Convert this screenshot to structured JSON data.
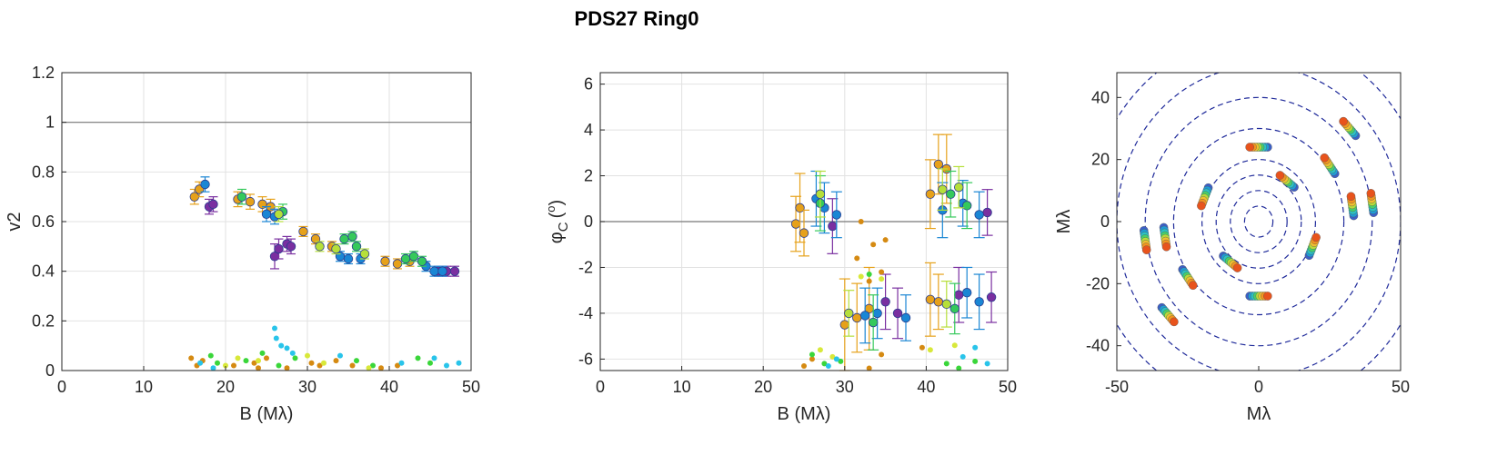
{
  "figure": {
    "title": "PDS27  Ring0"
  },
  "chart_data": [
    {
      "type": "scatter",
      "id": "v2",
      "xlabel": "B (Mλ)",
      "ylabel": "v2",
      "xlim": [
        0,
        50
      ],
      "ylim": [
        0,
        1.2
      ],
      "xticks": [
        0,
        10,
        20,
        30,
        40,
        50
      ],
      "yticks": [
        0,
        0.2,
        0.4,
        0.6,
        0.8,
        1,
        1.2
      ],
      "ytick_labels": [
        "0",
        "0.2",
        "0.4",
        "0.6",
        "0.8",
        "1",
        "1.2"
      ],
      "grid": true,
      "reference_line": 1,
      "series": [
        {
          "color": "#e6a11a",
          "errorbars": true,
          "points": [
            [
              16.2,
              0.7,
              0.03
            ],
            [
              16.8,
              0.73,
              0.03
            ],
            [
              21.5,
              0.69,
              0.03
            ],
            [
              23.0,
              0.68,
              0.03
            ],
            [
              24.5,
              0.67,
              0.03
            ],
            [
              25.5,
              0.66,
              0.03
            ],
            [
              29.5,
              0.56,
              0.02
            ],
            [
              31.0,
              0.53,
              0.02
            ],
            [
              33.0,
              0.5,
              0.02
            ],
            [
              39.5,
              0.44,
              0.02
            ],
            [
              41.0,
              0.43,
              0.02
            ],
            [
              42.5,
              0.44,
              0.02
            ]
          ]
        },
        {
          "color": "#7a2fa0",
          "errorbars": true,
          "points": [
            [
              18.0,
              0.66,
              0.03
            ],
            [
              18.5,
              0.67,
              0.03
            ],
            [
              26.0,
              0.46,
              0.05
            ],
            [
              26.5,
              0.49,
              0.04
            ],
            [
              27.5,
              0.51,
              0.03
            ],
            [
              28.0,
              0.5,
              0.03
            ],
            [
              46.0,
              0.4,
              0.02
            ],
            [
              47.0,
              0.4,
              0.02
            ],
            [
              48.0,
              0.4,
              0.02
            ]
          ]
        },
        {
          "color": "#1a86d4",
          "errorbars": true,
          "points": [
            [
              17.5,
              0.75,
              0.03
            ],
            [
              25.0,
              0.63,
              0.03
            ],
            [
              26.0,
              0.62,
              0.03
            ],
            [
              34.0,
              0.46,
              0.02
            ],
            [
              35.0,
              0.45,
              0.02
            ],
            [
              36.5,
              0.45,
              0.02
            ],
            [
              44.5,
              0.42,
              0.02
            ],
            [
              45.5,
              0.4,
              0.02
            ],
            [
              46.5,
              0.4,
              0.02
            ]
          ]
        },
        {
          "color": "#35c95b",
          "errorbars": true,
          "points": [
            [
              22.0,
              0.7,
              0.03
            ],
            [
              27.0,
              0.64,
              0.03
            ],
            [
              34.5,
              0.53,
              0.02
            ],
            [
              35.5,
              0.54,
              0.02
            ],
            [
              36.0,
              0.5,
              0.02
            ],
            [
              42.0,
              0.45,
              0.02
            ],
            [
              43.0,
              0.46,
              0.02
            ],
            [
              44.0,
              0.44,
              0.02
            ]
          ]
        },
        {
          "color": "#b6df3a",
          "errorbars": true,
          "points": [
            [
              26.5,
              0.63,
              0.03
            ],
            [
              31.5,
              0.5,
              0.02
            ],
            [
              33.5,
              0.49,
              0.02
            ],
            [
              37.0,
              0.47,
              0.02
            ]
          ]
        },
        {
          "color": "#d58a12",
          "errorbars": false,
          "points": [
            [
              15.8,
              0.05
            ],
            [
              16.5,
              0.02
            ],
            [
              17.2,
              0.04
            ],
            [
              21.0,
              0.02
            ],
            [
              23.5,
              0.03
            ],
            [
              24.0,
              0.01
            ],
            [
              25.0,
              0.05
            ],
            [
              27.5,
              0.01
            ],
            [
              30.5,
              0.03
            ],
            [
              31.5,
              0.02
            ],
            [
              33.5,
              0.04
            ],
            [
              35.5,
              0.02
            ],
            [
              39.0,
              0.01
            ],
            [
              41.0,
              0.02
            ]
          ]
        },
        {
          "color": "#3ad63a",
          "errorbars": false,
          "points": [
            [
              18.2,
              0.06
            ],
            [
              19.0,
              0.03
            ],
            [
              22.5,
              0.04
            ],
            [
              24.5,
              0.07
            ],
            [
              26.5,
              0.02
            ],
            [
              28.5,
              0.05
            ],
            [
              36.0,
              0.04
            ],
            [
              38.0,
              0.02
            ],
            [
              43.5,
              0.05
            ],
            [
              45.0,
              0.03
            ]
          ]
        },
        {
          "color": "#d8e83a",
          "errorbars": false,
          "points": [
            [
              20.0,
              0.02
            ],
            [
              21.5,
              0.05
            ],
            [
              24.0,
              0.04
            ],
            [
              30.0,
              0.06
            ],
            [
              32.0,
              0.03
            ],
            [
              37.5,
              0.01
            ]
          ]
        },
        {
          "color": "#29c4ea",
          "errorbars": false,
          "points": [
            [
              16.9,
              0.03
            ],
            [
              18.5,
              0.01
            ],
            [
              26.0,
              0.17
            ],
            [
              26.2,
              0.13
            ],
            [
              26.8,
              0.1
            ],
            [
              27.5,
              0.09
            ],
            [
              28.2,
              0.07
            ],
            [
              34.0,
              0.06
            ],
            [
              41.5,
              0.03
            ],
            [
              45.5,
              0.05
            ],
            [
              47.0,
              0.02
            ],
            [
              48.5,
              0.03
            ]
          ]
        }
      ]
    },
    {
      "type": "scatter",
      "id": "closure-phase",
      "xlabel": "B (Mλ)",
      "ylabel": "φC (o)",
      "ylabel_main": "φ",
      "ylabel_sub": "C",
      "ylabel_unit_open": "(",
      "ylabel_unit_sup": "o",
      "ylabel_unit_close": ")",
      "xlim": [
        0,
        50
      ],
      "ylim": [
        -6.5,
        6.5
      ],
      "xticks": [
        0,
        10,
        20,
        30,
        40,
        50
      ],
      "yticks": [
        -6,
        -4,
        -2,
        0,
        2,
        4,
        6
      ],
      "grid": true,
      "reference_line": 0,
      "series": [
        {
          "color": "#e6a11a",
          "errorbars": true,
          "points": [
            [
              24.0,
              -0.1,
              1.2
            ],
            [
              24.5,
              0.6,
              1.5
            ],
            [
              25.0,
              -0.5,
              1.0
            ],
            [
              30.0,
              -4.5,
              2.0
            ],
            [
              31.5,
              -4.2,
              1.5
            ],
            [
              33.0,
              -3.8,
              1.8
            ],
            [
              40.5,
              1.2,
              1.5
            ],
            [
              41.5,
              2.5,
              1.3
            ],
            [
              42.5,
              2.3,
              1.5
            ],
            [
              40.5,
              -3.4,
              1.6
            ],
            [
              41.5,
              -3.5,
              1.2
            ]
          ]
        },
        {
          "color": "#7a2fa0",
          "errorbars": true,
          "points": [
            [
              28.5,
              -0.2,
              1.2
            ],
            [
              35.0,
              -3.5,
              1.2
            ],
            [
              36.5,
              -4.0,
              1.1
            ],
            [
              47.5,
              0.4,
              1.0
            ],
            [
              48.0,
              -3.3,
              1.1
            ],
            [
              44.0,
              -3.2,
              1.2
            ]
          ]
        },
        {
          "color": "#1a86d4",
          "errorbars": true,
          "points": [
            [
              26.5,
              1.0,
              1.2
            ],
            [
              27.5,
              0.6,
              1.1
            ],
            [
              29.0,
              0.3,
              1.0
            ],
            [
              32.5,
              -4.1,
              1.2
            ],
            [
              34.0,
              -4.0,
              1.1
            ],
            [
              37.5,
              -4.2,
              1.0
            ],
            [
              42.0,
              0.5,
              1.2
            ],
            [
              44.5,
              0.8,
              1.0
            ],
            [
              46.5,
              0.3,
              1.0
            ],
            [
              45.0,
              -3.1,
              1.1
            ],
            [
              46.5,
              -3.5,
              1.2
            ]
          ]
        },
        {
          "color": "#35c95b",
          "errorbars": true,
          "points": [
            [
              27.0,
              0.8,
              1.2
            ],
            [
              33.5,
              -4.4,
              1.2
            ],
            [
              43.0,
              1.2,
              1.0
            ],
            [
              45.0,
              0.7,
              1.0
            ],
            [
              43.5,
              -3.8,
              1.1
            ]
          ]
        },
        {
          "color": "#b6df3a",
          "errorbars": true,
          "points": [
            [
              27.0,
              1.2,
              1.0
            ],
            [
              30.5,
              -4.0,
              1.0
            ],
            [
              42.0,
              1.4,
              0.9
            ],
            [
              44.0,
              1.5,
              0.9
            ],
            [
              42.5,
              -3.6,
              1.0
            ]
          ]
        },
        {
          "color": "#d58a12",
          "errorbars": false,
          "points": [
            [
              32.0,
              0.0
            ],
            [
              33.5,
              -1.0
            ],
            [
              35.0,
              -0.8
            ],
            [
              31.5,
              -1.6
            ],
            [
              33.0,
              -2.6
            ],
            [
              34.5,
              -2.2
            ],
            [
              25.0,
              -6.3
            ],
            [
              26.0,
              -6.0
            ],
            [
              33.0,
              -6.4
            ],
            [
              34.5,
              -5.8
            ],
            [
              39.5,
              -5.5
            ]
          ]
        },
        {
          "color": "#3ad63a",
          "errorbars": false,
          "points": [
            [
              26.0,
              -5.8
            ],
            [
              27.5,
              -6.2
            ],
            [
              29.5,
              -6.1
            ],
            [
              33.0,
              -2.3
            ],
            [
              42.5,
              -6.2
            ],
            [
              44.0,
              -6.4
            ],
            [
              46.0,
              -6.1
            ]
          ]
        },
        {
          "color": "#d8e83a",
          "errorbars": false,
          "points": [
            [
              27.0,
              -5.6
            ],
            [
              28.5,
              -5.9
            ],
            [
              32.0,
              -2.4
            ],
            [
              34.5,
              -2.5
            ],
            [
              40.5,
              -5.6
            ],
            [
              43.5,
              -5.4
            ]
          ]
        },
        {
          "color": "#29c4ea",
          "errorbars": false,
          "points": [
            [
              28.0,
              -6.3
            ],
            [
              29.0,
              -6.0
            ],
            [
              44.5,
              -5.9
            ],
            [
              47.5,
              -6.2
            ],
            [
              46.0,
              -5.5
            ]
          ]
        }
      ]
    },
    {
      "type": "scatter",
      "id": "uv-coverage",
      "xlabel": "Mλ",
      "ylabel": "Mλ",
      "xlim": [
        -50,
        50
      ],
      "ylim": [
        -48,
        48
      ],
      "xticks": [
        -50,
        0,
        50
      ],
      "yticks": [
        -40,
        -20,
        0,
        20,
        40
      ],
      "grid": false,
      "reference_circles": [
        5,
        10,
        15,
        20,
        30,
        40,
        50,
        60
      ],
      "series": [
        {
          "name": "uv-arcs",
          "points": [
            [
              0,
              24
            ],
            [
              0,
              -24
            ],
            [
              -19,
              8
            ],
            [
              19,
              -8
            ],
            [
              33,
              5
            ],
            [
              -33,
              -5
            ],
            [
              32,
              30
            ],
            [
              -32,
              -30
            ],
            [
              -25,
              -18
            ],
            [
              25,
              18
            ],
            [
              10,
              13
            ],
            [
              -10,
              -13
            ],
            [
              -40,
              -6
            ],
            [
              40,
              6
            ]
          ]
        }
      ],
      "color_sequence": [
        "#3b5fc8",
        "#1f9bd6",
        "#2bc3c3",
        "#47d16a",
        "#b8dc3a",
        "#f0c030",
        "#f5941e",
        "#e8531c"
      ]
    }
  ]
}
